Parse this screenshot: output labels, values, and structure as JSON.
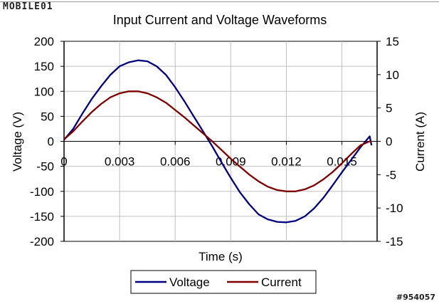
{
  "brand": {
    "logo_text": "MOBILE01",
    "watermark": "#954057"
  },
  "chart_data": {
    "type": "line",
    "title": "Input Current and Voltage Waveforms",
    "xlabel": "Time (s)",
    "ylabel": "Voltage (V)",
    "y2label": "Current (A)",
    "x_ticks": [
      "0",
      "0.003",
      "0.006",
      "0.009",
      "0.012",
      "0.015"
    ],
    "x_tick_values": [
      0,
      0.003,
      0.006,
      0.009,
      0.012,
      0.015
    ],
    "xlim": [
      0,
      0.0169
    ],
    "ylim": [
      -200,
      200
    ],
    "y_ticks": [
      200,
      150,
      100,
      50,
      0,
      -50,
      -100,
      -150,
      -200
    ],
    "y2lim": [
      -15,
      15
    ],
    "y2_ticks": [
      15,
      10,
      5,
      0,
      -5,
      -10,
      -15
    ],
    "grid": true,
    "legend_position": "bottom",
    "series": [
      {
        "name": "Voltage",
        "axis": "left",
        "color": "#000080",
        "x": [
          0,
          0.0005,
          0.001,
          0.0015,
          0.002,
          0.0025,
          0.003,
          0.0035,
          0.004,
          0.0045,
          0.005,
          0.0055,
          0.006,
          0.0065,
          0.007,
          0.0075,
          0.008,
          0.0085,
          0.009,
          0.0095,
          0.01,
          0.0105,
          0.011,
          0.0115,
          0.012,
          0.0125,
          0.013,
          0.0135,
          0.014,
          0.0145,
          0.015,
          0.0155,
          0.016,
          0.0165,
          0.0166
        ],
        "values": [
          3,
          25,
          56,
          85,
          110,
          133,
          150,
          158,
          162,
          160,
          150,
          133,
          108,
          80,
          50,
          20,
          -10,
          -42,
          -73,
          -102,
          -126,
          -146,
          -156,
          -161,
          -162,
          -159,
          -150,
          -134,
          -113,
          -88,
          -62,
          -37,
          -12,
          10,
          -8
        ]
      },
      {
        "name": "Current",
        "axis": "right",
        "color": "#800000",
        "x": [
          0,
          0.0005,
          0.001,
          0.0015,
          0.002,
          0.0025,
          0.003,
          0.0035,
          0.004,
          0.0045,
          0.005,
          0.0055,
          0.006,
          0.0065,
          0.007,
          0.0075,
          0.008,
          0.0085,
          0.009,
          0.0095,
          0.01,
          0.0105,
          0.011,
          0.0115,
          0.012,
          0.0125,
          0.013,
          0.0135,
          0.014,
          0.0145,
          0.015,
          0.0155,
          0.016,
          0.0165,
          0.0166
        ],
        "values": [
          0.3,
          1.5,
          3.0,
          4.4,
          5.6,
          6.6,
          7.2,
          7.5,
          7.5,
          7.2,
          6.6,
          5.8,
          4.7,
          3.6,
          2.4,
          1.2,
          0.0,
          -1.3,
          -2.6,
          -3.8,
          -5.0,
          -6.0,
          -6.8,
          -7.3,
          -7.5,
          -7.5,
          -7.2,
          -6.6,
          -5.7,
          -4.6,
          -3.3,
          -1.9,
          -0.6,
          0.0,
          -0.1
        ]
      }
    ]
  }
}
